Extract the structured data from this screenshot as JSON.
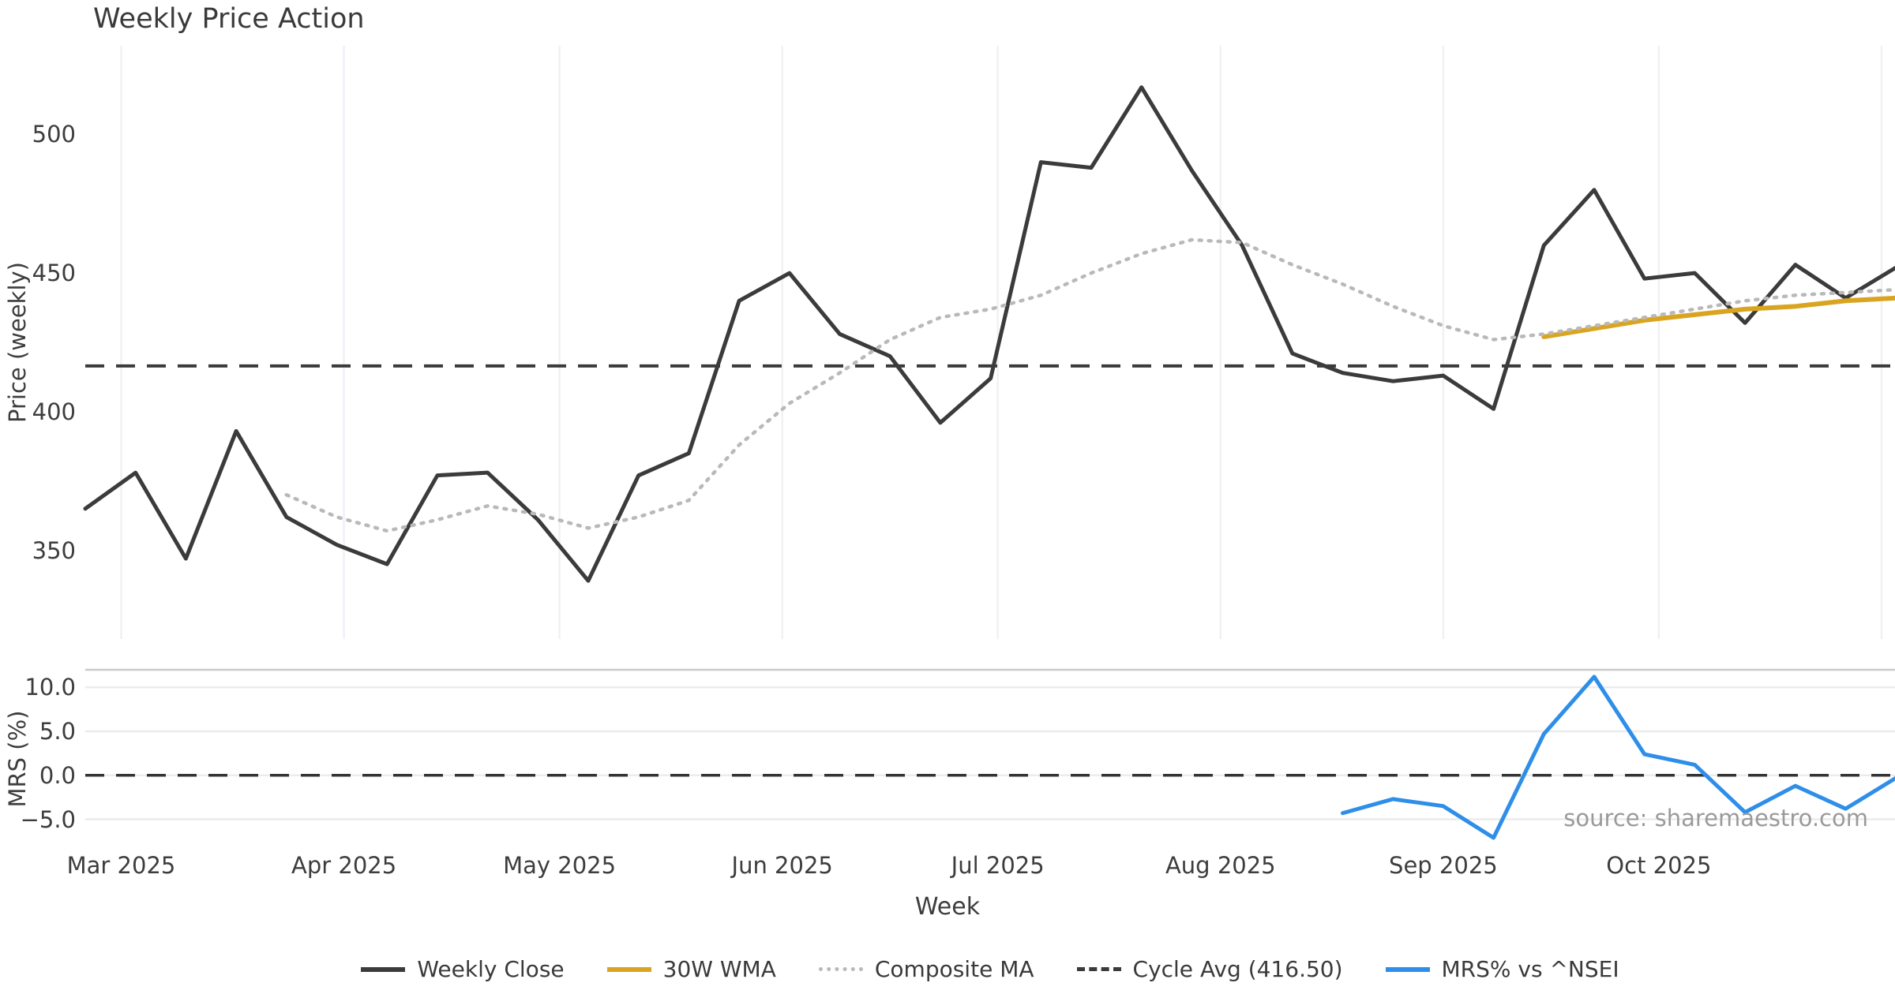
{
  "title": "Weekly Price Action",
  "axes": {
    "price_ylabel": "Price (weekly)",
    "mrs_ylabel": "MRS (%)",
    "xlabel": "Week"
  },
  "source": "source: sharemaestro.com",
  "legend": {
    "items": [
      {
        "label": "Weekly Close",
        "color": "#3b3b3b",
        "style": "solid"
      },
      {
        "label": "30W WMA",
        "color": "#d9a521",
        "style": "solid"
      },
      {
        "label": "Composite MA",
        "color": "#b9b9b9",
        "style": "dotted"
      },
      {
        "label": "Cycle Avg (416.50)",
        "color": "#3a3a3a",
        "style": "dashed"
      },
      {
        "label": "MRS% vs ^NSEI",
        "color": "#2e8ee8",
        "style": "solid"
      }
    ]
  },
  "chart_data": [
    {
      "type": "line",
      "panel": "price",
      "title": "Weekly Price Action",
      "xlabel": "Week",
      "ylabel": "Price (weekly)",
      "ylim": [
        318,
        532
      ],
      "yticks": [
        350,
        400,
        450,
        500
      ],
      "grid": "vertical-months-only",
      "x": [
        "2025-02-24",
        "2025-03-03",
        "2025-03-10",
        "2025-03-17",
        "2025-03-24",
        "2025-03-31",
        "2025-04-07",
        "2025-04-14",
        "2025-04-21",
        "2025-04-28",
        "2025-05-05",
        "2025-05-12",
        "2025-05-19",
        "2025-05-26",
        "2025-06-02",
        "2025-06-09",
        "2025-06-16",
        "2025-06-23",
        "2025-06-30",
        "2025-07-07",
        "2025-07-14",
        "2025-07-21",
        "2025-07-28",
        "2025-08-04",
        "2025-08-11",
        "2025-08-18",
        "2025-08-25",
        "2025-09-01",
        "2025-09-08",
        "2025-09-15",
        "2025-09-22",
        "2025-09-29",
        "2025-10-06",
        "2025-10-13",
        "2025-10-20",
        "2025-10-27",
        "2025-11-03"
      ],
      "xticks": [
        {
          "date": "2025-03-01",
          "label": "Mar 2025"
        },
        {
          "date": "2025-04-01",
          "label": "Apr 2025"
        },
        {
          "date": "2025-05-01",
          "label": "May 2025"
        },
        {
          "date": "2025-06-01",
          "label": "Jun 2025"
        },
        {
          "date": "2025-07-01",
          "label": "Jul 2025"
        },
        {
          "date": "2025-08-01",
          "label": "Aug 2025"
        },
        {
          "date": "2025-09-01",
          "label": "Sep 2025"
        },
        {
          "date": "2025-10-01",
          "label": "Oct 2025"
        },
        {
          "date": "2025-11-01",
          "label": ""
        }
      ],
      "series": [
        {
          "name": "Weekly Close",
          "color": "#3b3b3b",
          "style": "solid",
          "width": 5,
          "values": [
            365,
            378,
            347,
            393,
            362,
            352,
            345,
            377,
            378,
            361,
            339,
            377,
            385,
            440,
            450,
            428,
            420,
            396,
            412,
            490,
            488,
            517,
            487,
            460,
            421,
            414,
            411,
            413,
            401,
            460,
            480,
            448,
            450,
            432,
            453,
            441,
            452
          ]
        },
        {
          "name": "30W WMA",
          "color": "#d9a521",
          "style": "solid",
          "width": 6,
          "values": [
            null,
            null,
            null,
            null,
            null,
            null,
            null,
            null,
            null,
            null,
            null,
            null,
            null,
            null,
            null,
            null,
            null,
            null,
            null,
            null,
            null,
            null,
            null,
            null,
            null,
            null,
            null,
            null,
            null,
            427,
            430,
            433,
            435,
            437,
            438,
            440,
            441
          ]
        },
        {
          "name": "Composite MA",
          "color": "#b9b9b9",
          "style": "dotted",
          "width": 4.5,
          "values": [
            null,
            null,
            null,
            null,
            370,
            362,
            357,
            361,
            366,
            363,
            358,
            362,
            368,
            388,
            403,
            414,
            426,
            434,
            437,
            442,
            450,
            457,
            462,
            461,
            453,
            446,
            438,
            431,
            426,
            428,
            431,
            434,
            437,
            440,
            442,
            443,
            444
          ]
        },
        {
          "name": "Cycle Avg (416.50)",
          "color": "#3a3a3a",
          "style": "dashed",
          "width": 4,
          "constant": 416.5
        }
      ]
    },
    {
      "type": "line",
      "panel": "mrs",
      "ylabel": "MRS (%)",
      "ylim": [
        -8,
        12
      ],
      "yticks": [
        {
          "v": 10,
          "label": "10.0"
        },
        {
          "v": 5,
          "label": "5.0"
        },
        {
          "v": 0,
          "label": "0.0"
        },
        {
          "v": -5,
          "label": "−5.0"
        }
      ],
      "grid": "horizontal",
      "series": [
        {
          "name": "MRS% vs ^NSEI",
          "color": "#2e8ee8",
          "style": "solid",
          "width": 5,
          "values": [
            null,
            null,
            null,
            null,
            null,
            null,
            null,
            null,
            null,
            null,
            null,
            null,
            null,
            null,
            null,
            null,
            null,
            null,
            null,
            null,
            null,
            null,
            null,
            null,
            null,
            -4.3,
            -2.7,
            -3.5,
            -7.1,
            4.7,
            11.2,
            2.4,
            1.2,
            -4.2,
            -1.2,
            -3.8,
            -0.3
          ]
        },
        {
          "name": "zero-line",
          "color": "#333333",
          "style": "dashed",
          "width": 3.5,
          "constant": 0
        }
      ]
    }
  ]
}
